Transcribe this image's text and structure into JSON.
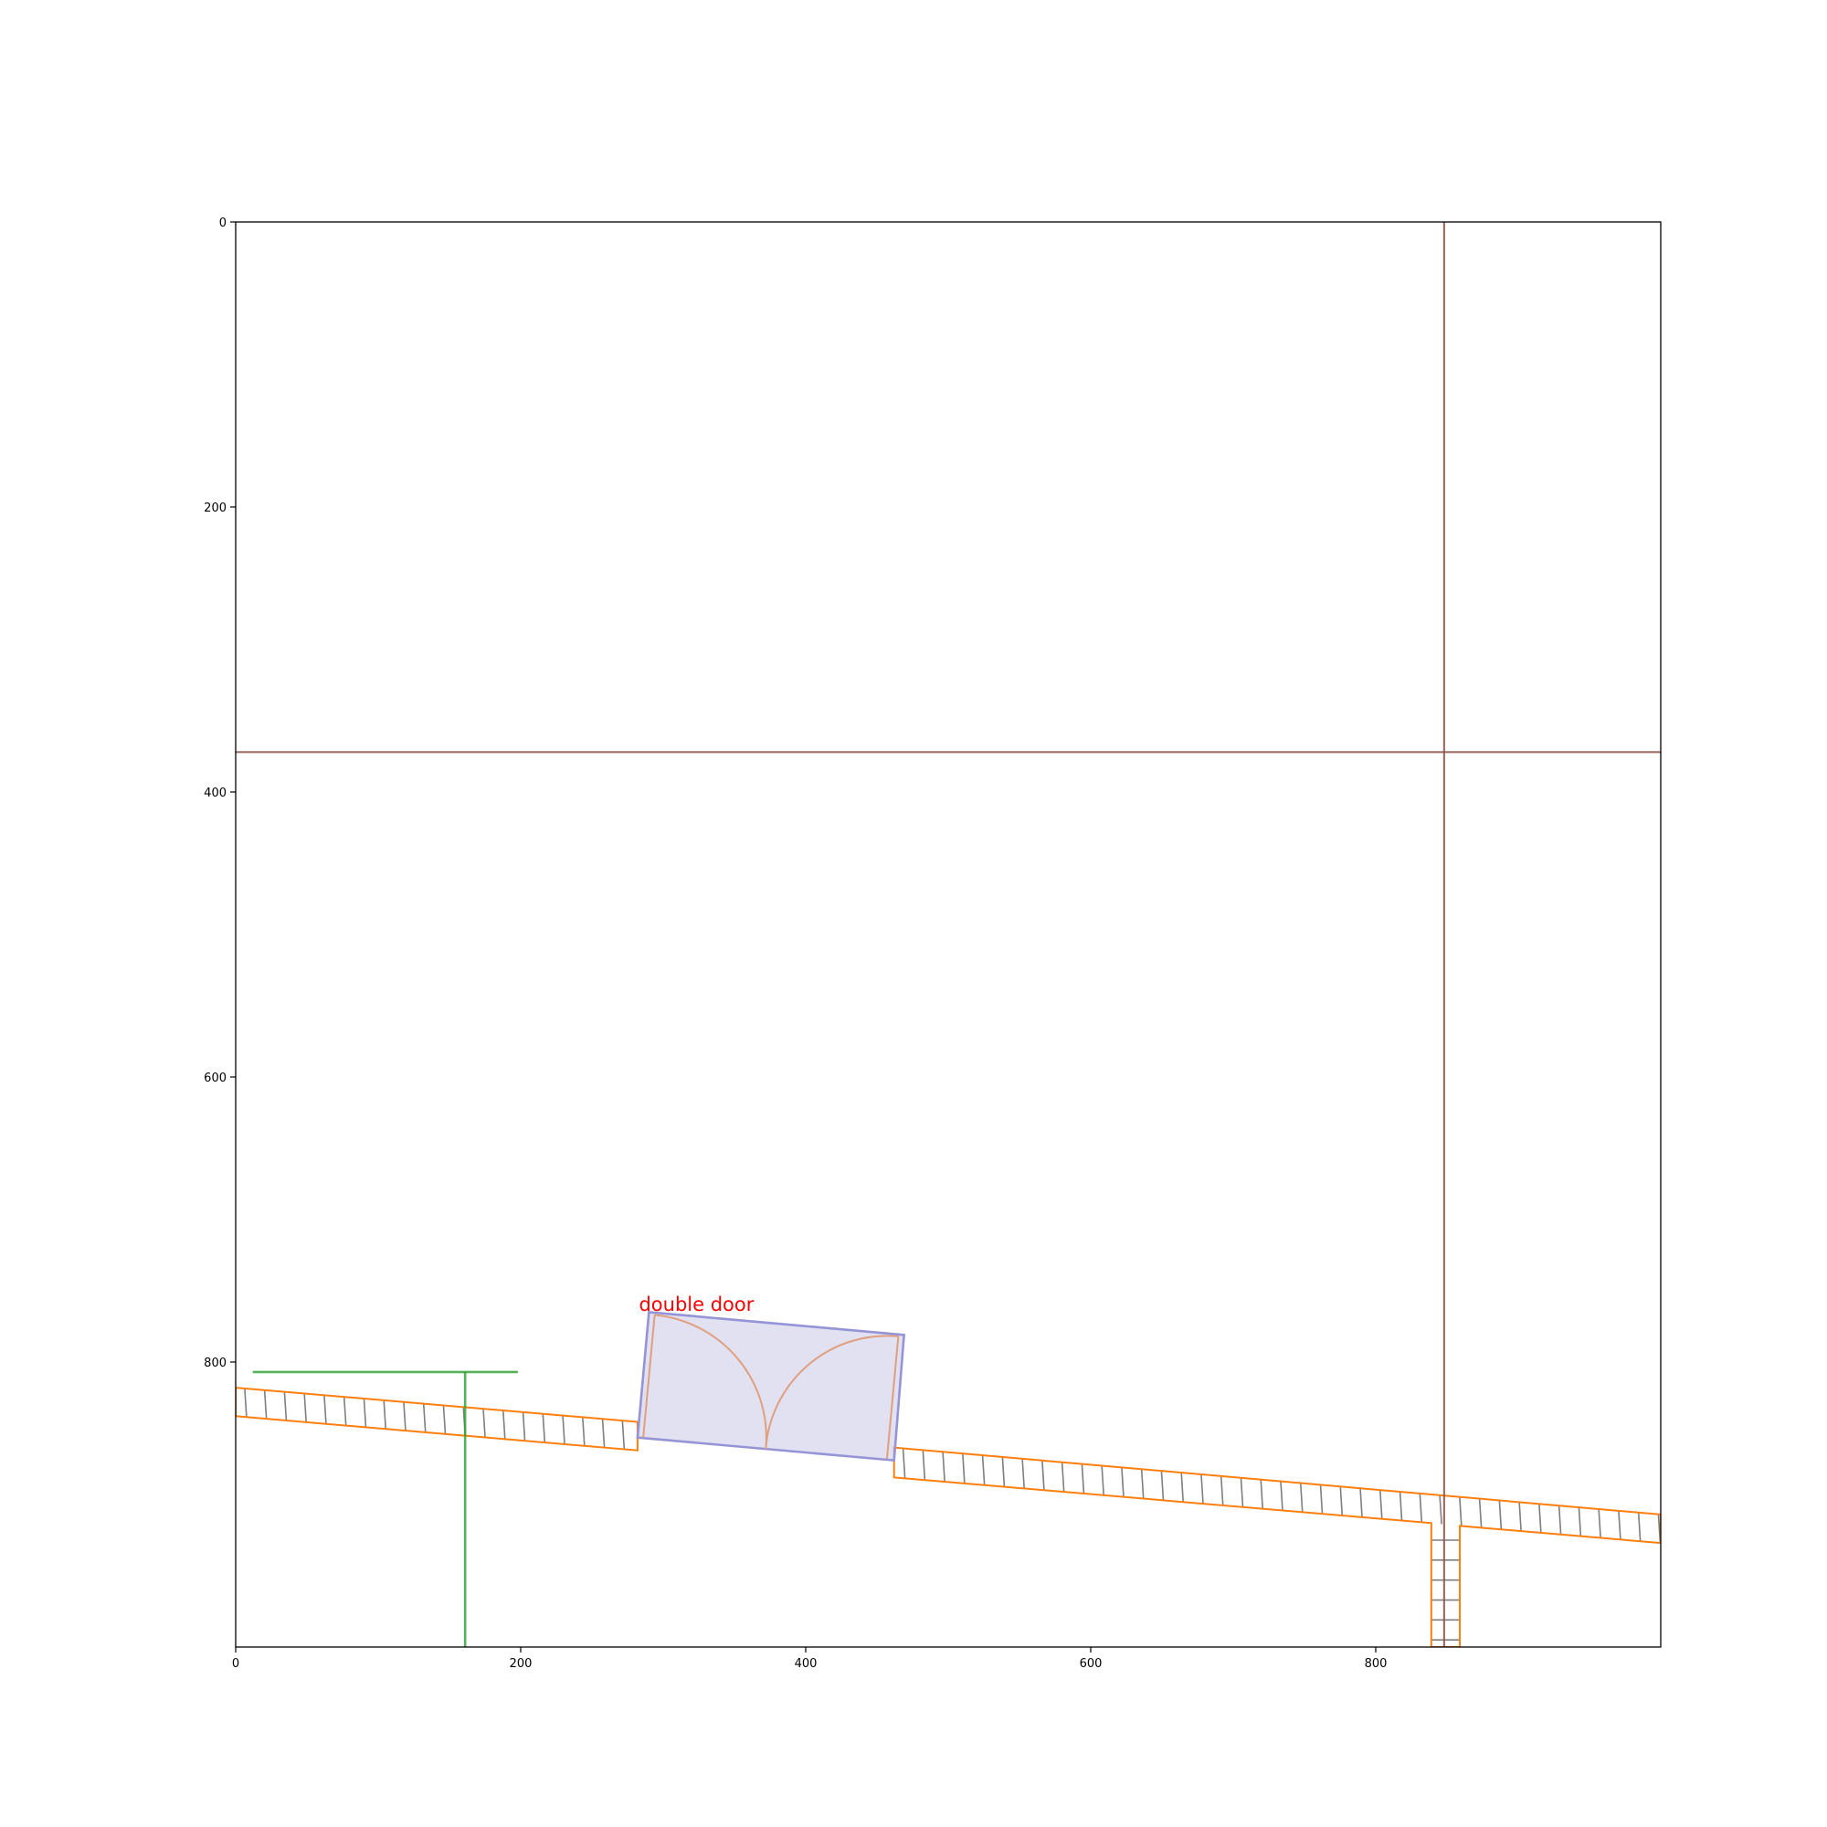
{
  "chart_data": {
    "type": "diagram",
    "title": "",
    "xlabel": "",
    "ylabel": "",
    "xlim": [
      0,
      1000
    ],
    "ylim": [
      1000,
      0
    ],
    "x_ticks": [
      "0",
      "200",
      "400",
      "600",
      "800"
    ],
    "y_ticks": [
      "0",
      "200",
      "400",
      "600",
      "800"
    ],
    "x_tick_values": [
      0,
      200,
      400,
      600,
      800
    ],
    "y_tick_values": [
      0,
      200,
      400,
      600,
      800
    ],
    "grid": false,
    "annotations": [
      {
        "text": "double door",
        "x": 283,
        "y": 764,
        "color": "#ff0000"
      }
    ],
    "reference_lines": {
      "color": "#8c564b",
      "horizontal_y": 372,
      "vertical_x": 848
    },
    "green_marker": {
      "color": "#2ca02c",
      "horizontal": {
        "x1": 12,
        "x2": 198,
        "y": 807
      },
      "vertical": {
        "x": 161,
        "y1": 807,
        "y2": 1000
      }
    },
    "colors": {
      "wall_outline": "#ff7f0e",
      "wall_hatch": "#7f7f7f",
      "door_fill": "#c8c8e8",
      "door_outline": "#9494d6",
      "door_swing": "#e0a080"
    },
    "walls": [
      {
        "name": "wall-left-segment",
        "outline": [
          [
            0,
            818
          ],
          [
            282,
            842
          ],
          [
            282,
            862
          ],
          [
            0,
            838
          ]
        ]
      },
      {
        "name": "wall-right-segment",
        "outline": [
          [
            462,
            860
          ],
          [
            1000,
            907
          ],
          [
            1000,
            927
          ],
          [
            859,
            915
          ],
          [
            859,
            1000
          ],
          [
            839,
            1000
          ],
          [
            839,
            913
          ],
          [
            462,
            881
          ]
        ]
      }
    ],
    "door": {
      "outline": [
        [
          290,
          765
        ],
        [
          469,
          781
        ],
        [
          462,
          869
        ],
        [
          282,
          853
        ]
      ],
      "leaves": [
        [
          [
            294,
            767
          ],
          [
            286,
            853
          ]
        ],
        [
          [
            465,
            782
          ],
          [
            457,
            868
          ]
        ]
      ],
      "meeting_point": [
        372,
        861
      ],
      "hinge_left_open": [
        294,
        767
      ],
      "hinge_right_open": [
        465,
        782
      ]
    }
  }
}
